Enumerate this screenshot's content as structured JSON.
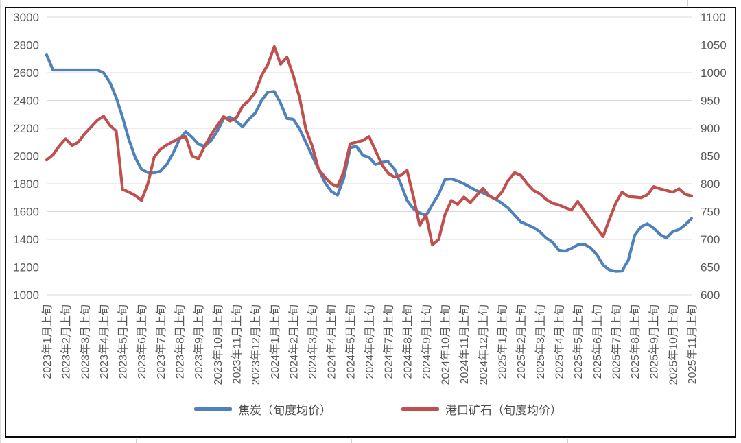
{
  "chart_data": {
    "type": "line",
    "title": "",
    "grid": true,
    "legend_position": "bottom",
    "points_per_month": 3,
    "period_names": [
      "上旬",
      "中旬",
      "下旬"
    ],
    "x_tick_labels": [
      "2023年1月上旬",
      "2023年2月上旬",
      "2023年3月上旬",
      "2023年4月上旬",
      "2023年5月上旬",
      "2023年6月上旬",
      "2023年7月上旬",
      "2023年8月上旬",
      "2023年9月上旬",
      "2023年10月上旬",
      "2023年11月上旬",
      "2023年12月上旬",
      "2024年1月上旬",
      "2024年2月上旬",
      "2024年3月上旬",
      "2024年4月上旬",
      "2024年5月上旬",
      "2024年6月上旬",
      "2024年7月上旬",
      "2024年8月上旬",
      "2024年9月上旬",
      "2024年10月上旬",
      "2024年11月上旬",
      "2024年12月上旬",
      "2025年1月上旬",
      "2025年2月上旬",
      "2025年3月上旬",
      "2025年4月上旬",
      "2025年5月上旬",
      "2025年6月上旬",
      "2025年7月上旬",
      "2025年8月上旬",
      "2025年9月上旬",
      "2025年10月上旬",
      "2025年11月上旬"
    ],
    "left_axis": {
      "min": 1000,
      "max": 3000,
      "step": 200,
      "ticks": [
        "3000",
        "2800",
        "2600",
        "2400",
        "2200",
        "2000",
        "1800",
        "1600",
        "1400",
        "1200",
        "1000"
      ]
    },
    "right_axis": {
      "min": 600,
      "max": 1100,
      "step": 50,
      "ticks": [
        "1100",
        "1050",
        "1000",
        "950",
        "900",
        "850",
        "800",
        "750",
        "700",
        "650",
        "600"
      ]
    },
    "grid_color": "#d9d9d9",
    "series": [
      {
        "id": "coke",
        "name": "焦炭（旬度均价）",
        "axis": "left",
        "color": "#4F81BD",
        "values": [
          2728,
          2620,
          2620,
          2620,
          2620,
          2620,
          2620,
          2620,
          2620,
          2600,
          2530,
          2420,
          2280,
          2120,
          1990,
          1905,
          1880,
          1878,
          1890,
          1940,
          2020,
          2120,
          2175,
          2135,
          2085,
          2070,
          2110,
          2180,
          2270,
          2280,
          2250,
          2210,
          2265,
          2310,
          2400,
          2460,
          2465,
          2380,
          2270,
          2265,
          2195,
          2100,
          2000,
          1905,
          1810,
          1745,
          1718,
          1840,
          2060,
          2070,
          2005,
          1990,
          1940,
          1955,
          1960,
          1905,
          1800,
          1680,
          1620,
          1590,
          1572,
          1650,
          1725,
          1830,
          1835,
          1820,
          1800,
          1775,
          1750,
          1735,
          1712,
          1690,
          1660,
          1625,
          1575,
          1525,
          1505,
          1485,
          1455,
          1410,
          1380,
          1322,
          1315,
          1335,
          1360,
          1365,
          1340,
          1290,
          1215,
          1180,
          1170,
          1172,
          1250,
          1430,
          1490,
          1512,
          1480,
          1435,
          1410,
          1455,
          1470,
          1505,
          1550
        ]
      },
      {
        "id": "port-ore",
        "name": "港口矿石（旬度均价）",
        "axis": "right",
        "color": "#C0504D",
        "values": [
          843,
          852,
          868,
          881,
          869,
          875,
          890,
          902,
          914,
          922,
          905,
          895,
          790,
          785,
          779,
          770,
          800,
          848,
          862,
          870,
          876,
          882,
          885,
          850,
          845,
          868,
          888,
          905,
          921,
          913,
          919,
          940,
          950,
          965,
          995,
          1015,
          1047,
          1015,
          1028,
          995,
          955,
          898,
          868,
          826,
          812,
          800,
          795,
          822,
          872,
          875,
          878,
          885,
          860,
          835,
          819,
          812,
          815,
          824,
          777,
          725,
          744,
          690,
          700,
          745,
          770,
          763,
          776,
          766,
          779,
          792,
          778,
          772,
          785,
          806,
          820,
          815,
          800,
          788,
          782,
          772,
          765,
          762,
          757,
          753,
          768,
          752,
          736,
          720,
          705,
          736,
          765,
          785,
          777,
          776,
          775,
          780,
          795,
          791,
          788,
          785,
          791,
          781,
          778
        ]
      }
    ]
  },
  "legend": {
    "items": [
      {
        "label": "焦炭（旬度均价）",
        "color": "#4F81BD"
      },
      {
        "label": "港口矿石（旬度均价）",
        "color": "#C0504D"
      }
    ]
  }
}
